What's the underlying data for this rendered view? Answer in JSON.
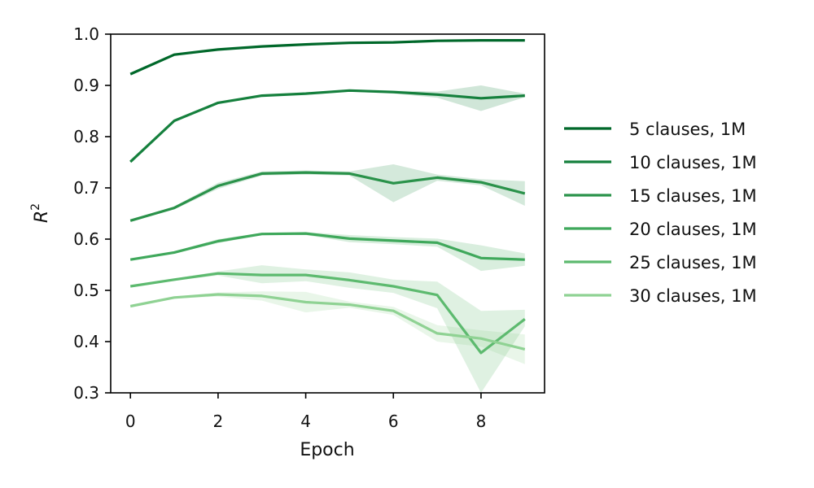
{
  "chart_data": {
    "type": "line",
    "title": "",
    "xlabel": "Epoch",
    "ylabel": "R",
    "ylabel_superscript": "2",
    "xlim": [
      -0.45,
      9.45
    ],
    "ylim": [
      0.3,
      1.0
    ],
    "xticks": [
      0,
      2,
      4,
      6,
      8
    ],
    "yticks": [
      "0.3",
      "0.4",
      "0.5",
      "0.6",
      "0.7",
      "0.8",
      "0.9",
      "1.0"
    ],
    "legend_position": "right-outside",
    "grid": false,
    "x": [
      0,
      1,
      2,
      3,
      4,
      5,
      6,
      7,
      8,
      9
    ],
    "series": [
      {
        "name": "5 clauses, 1M",
        "color": "#00682a",
        "values": [
          0.922,
          0.96,
          0.97,
          0.976,
          0.98,
          0.983,
          0.984,
          0.987,
          0.988,
          0.988
        ],
        "lower": [
          0.92,
          0.958,
          0.968,
          0.975,
          0.979,
          0.982,
          0.983,
          0.986,
          0.987,
          0.987
        ],
        "upper": [
          0.924,
          0.962,
          0.972,
          0.977,
          0.981,
          0.984,
          0.985,
          0.988,
          0.989,
          0.989
        ]
      },
      {
        "name": "10 clauses, 1M",
        "color": "#15803d",
        "values": [
          0.751,
          0.831,
          0.866,
          0.88,
          0.884,
          0.89,
          0.887,
          0.882,
          0.875,
          0.88
        ],
        "lower": [
          0.749,
          0.829,
          0.864,
          0.878,
          0.882,
          0.888,
          0.884,
          0.876,
          0.85,
          0.877
        ],
        "upper": [
          0.753,
          0.833,
          0.868,
          0.882,
          0.886,
          0.892,
          0.89,
          0.888,
          0.9,
          0.884
        ]
      },
      {
        "name": "15 clauses, 1M",
        "color": "#2a924a",
        "values": [
          0.636,
          0.661,
          0.704,
          0.728,
          0.73,
          0.728,
          0.709,
          0.72,
          0.711,
          0.689
        ],
        "lower": [
          0.634,
          0.658,
          0.698,
          0.724,
          0.726,
          0.724,
          0.672,
          0.714,
          0.705,
          0.665
        ],
        "upper": [
          0.638,
          0.664,
          0.71,
          0.732,
          0.734,
          0.732,
          0.746,
          0.726,
          0.717,
          0.713
        ]
      },
      {
        "name": "20 clauses, 1M",
        "color": "#3fa85b",
        "values": [
          0.56,
          0.574,
          0.596,
          0.61,
          0.611,
          0.601,
          0.597,
          0.593,
          0.563,
          0.56
        ],
        "lower": [
          0.558,
          0.572,
          0.592,
          0.608,
          0.608,
          0.594,
          0.59,
          0.585,
          0.538,
          0.548
        ],
        "upper": [
          0.562,
          0.576,
          0.6,
          0.612,
          0.614,
          0.608,
          0.604,
          0.601,
          0.588,
          0.572
        ]
      },
      {
        "name": "25 clauses, 1M",
        "color": "#5dba6f",
        "values": [
          0.508,
          0.521,
          0.533,
          0.53,
          0.53,
          0.52,
          0.508,
          0.491,
          0.378,
          0.444
        ],
        "lower": [
          0.506,
          0.519,
          0.529,
          0.514,
          0.518,
          0.505,
          0.495,
          0.465,
          0.3,
          0.43
        ],
        "upper": [
          0.51,
          0.523,
          0.537,
          0.549,
          0.541,
          0.535,
          0.521,
          0.517,
          0.46,
          0.462
        ]
      },
      {
        "name": "30 clauses, 1M",
        "color": "#8fd293",
        "values": [
          0.469,
          0.486,
          0.492,
          0.489,
          0.477,
          0.472,
          0.46,
          0.416,
          0.406,
          0.385
        ],
        "lower": [
          0.467,
          0.484,
          0.488,
          0.48,
          0.457,
          0.466,
          0.452,
          0.4,
          0.39,
          0.356
        ],
        "upper": [
          0.471,
          0.488,
          0.496,
          0.498,
          0.497,
          0.478,
          0.468,
          0.432,
          0.422,
          0.414
        ]
      }
    ]
  }
}
